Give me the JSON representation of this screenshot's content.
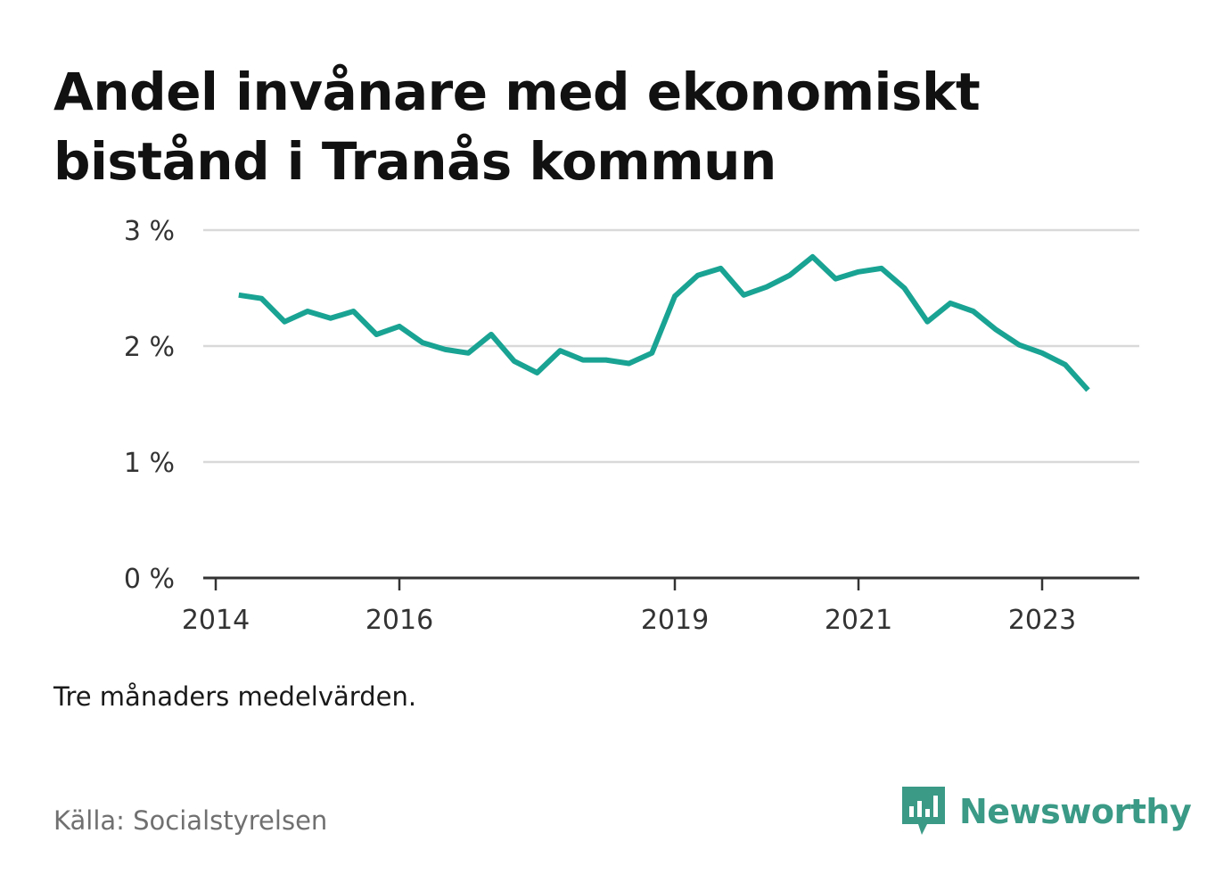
{
  "title": "Andel invånare med ekonomiskt bistånd i Tranås kommun",
  "note": "Tre månaders medelvärden.",
  "source": "Källa: Socialstyrelsen",
  "brand": {
    "name": "Newsworthy",
    "icon": "newsworthy-logo-icon",
    "color": "#3a9a86"
  },
  "colors": {
    "line": "#19a393",
    "grid": "#d9d9d9",
    "axis": "#333333"
  },
  "chart_data": {
    "type": "line",
    "title": "Andel invånare med ekonomiskt bistånd i Tranås kommun",
    "xlabel": "",
    "ylabel": "",
    "xlim": [
      2014.0,
      2024.3
    ],
    "ylim": [
      0,
      3
    ],
    "grid": true,
    "x_ticks": [
      2014,
      2016,
      2019,
      2021,
      2023
    ],
    "x_tick_labels": [
      "2014",
      "2016",
      "2019",
      "2021",
      "2023"
    ],
    "y_ticks": [
      0,
      1,
      2,
      3
    ],
    "y_tick_labels": [
      "0 %",
      "1 %",
      "2 %",
      "3 %"
    ],
    "series": [
      {
        "x": [
          2014.25,
          2014.5,
          2014.75,
          2015.0,
          2015.25,
          2015.5,
          2015.75,
          2016.0,
          2016.25,
          2016.5,
          2016.75,
          2017.0,
          2017.25,
          2017.5,
          2017.75,
          2018.0,
          2018.25,
          2018.5,
          2018.75,
          2019.0,
          2019.25,
          2019.5,
          2019.75,
          2020.0,
          2020.25,
          2020.5,
          2020.75,
          2021.0,
          2021.25,
          2021.5,
          2021.75,
          2022.0,
          2022.25,
          2022.5,
          2022.75,
          2023.0,
          2023.25,
          2023.5
        ],
        "values": [
          2.44,
          2.41,
          2.21,
          2.3,
          2.24,
          2.3,
          2.1,
          2.17,
          2.03,
          1.97,
          1.94,
          2.1,
          1.87,
          1.77,
          1.96,
          1.88,
          1.88,
          1.85,
          1.94,
          2.43,
          2.61,
          2.67,
          2.44,
          2.51,
          2.61,
          2.77,
          2.58,
          2.64,
          2.67,
          2.5,
          2.21,
          2.37,
          2.3,
          2.14,
          2.01,
          1.94,
          1.84,
          1.62
        ]
      }
    ]
  }
}
